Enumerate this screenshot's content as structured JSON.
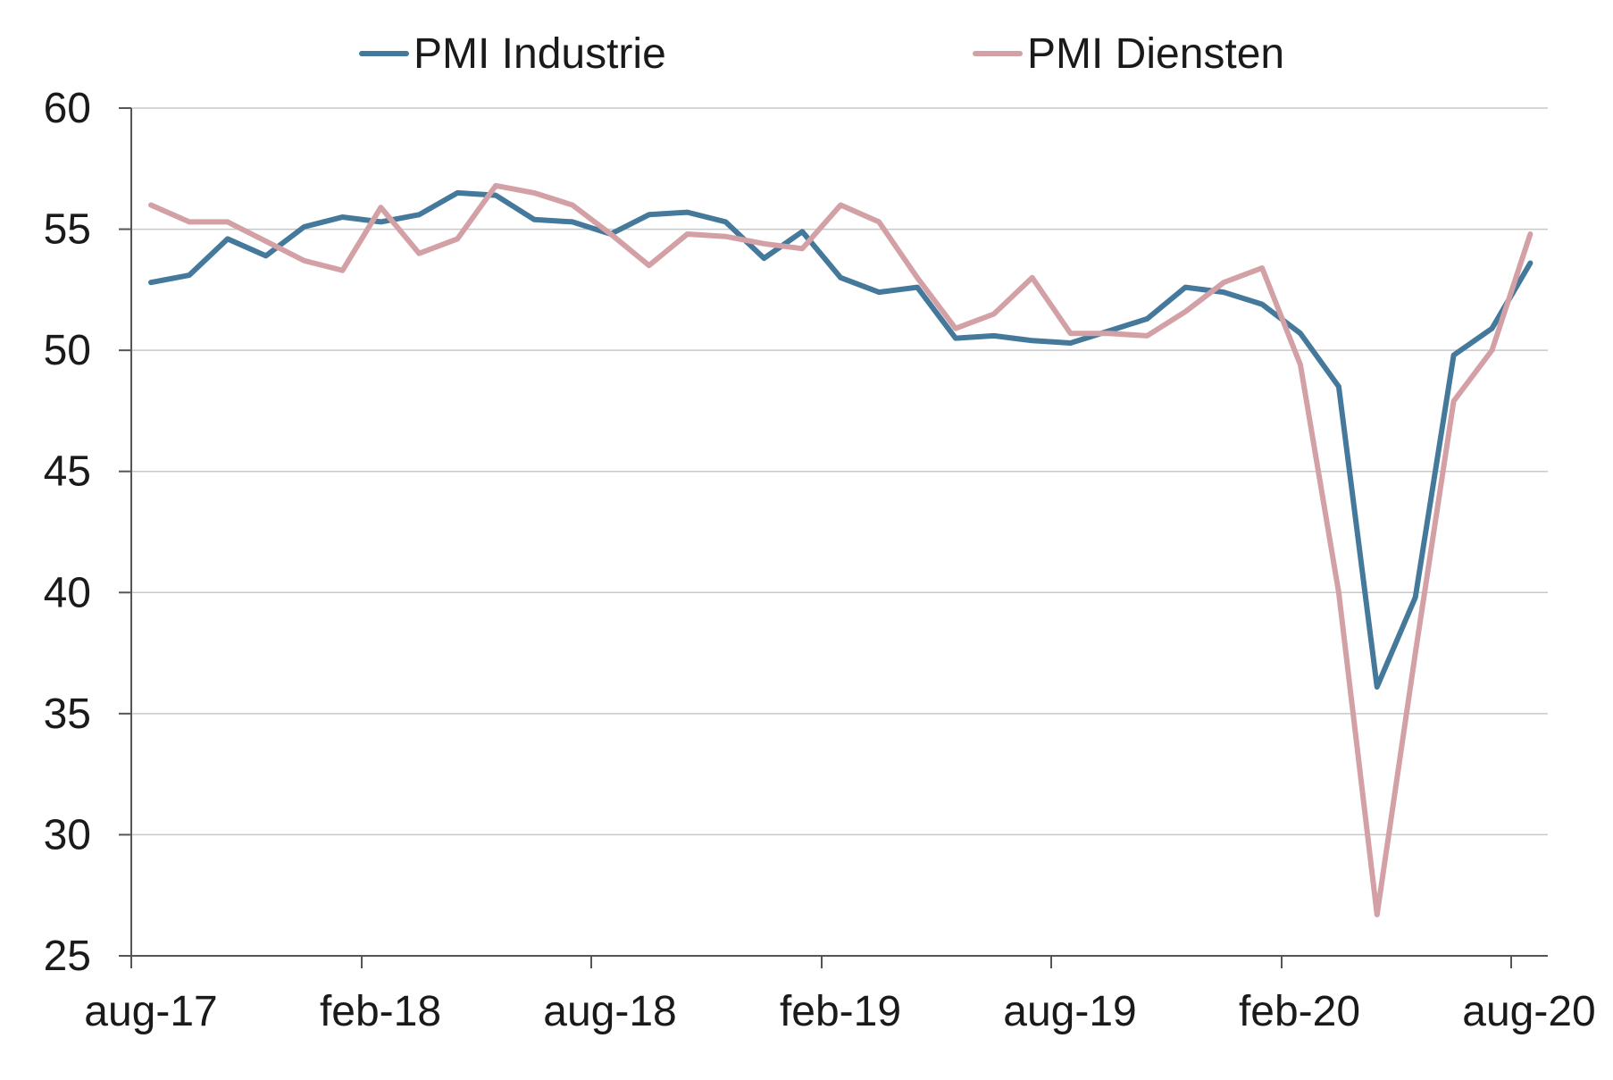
{
  "chart_data": {
    "type": "line",
    "title": "",
    "xlabel": "",
    "ylabel": "",
    "ylim": [
      25,
      60
    ],
    "y_ticks": [
      "25",
      "30",
      "35",
      "40",
      "45",
      "50",
      "55",
      "60"
    ],
    "x_tick_labels": [
      "aug-17",
      "feb-18",
      "aug-18",
      "feb-19",
      "aug-19",
      "feb-20",
      "aug-20"
    ],
    "grid": true,
    "legend_position": "top",
    "x": [
      "aug-17",
      "sep-17",
      "okt-17",
      "nov-17",
      "dec-17",
      "jan-18",
      "feb-18",
      "mrt-18",
      "apr-18",
      "mei-18",
      "jun-18",
      "jul-18",
      "aug-18",
      "sep-18",
      "okt-18",
      "nov-18",
      "dec-18",
      "jan-19",
      "feb-19",
      "mrt-19",
      "apr-19",
      "mei-19",
      "jun-19",
      "jul-19",
      "aug-19",
      "sep-19",
      "okt-19",
      "nov-19",
      "dec-19",
      "jan-20",
      "feb-20",
      "mrt-20",
      "apr-20",
      "mei-20",
      "jun-20",
      "jul-20",
      "aug-20"
    ],
    "series": [
      {
        "name": "PMI Industrie",
        "color": "#45799b",
        "values": [
          52.8,
          53.1,
          54.6,
          53.9,
          55.1,
          55.5,
          55.3,
          55.6,
          56.5,
          56.4,
          55.4,
          55.3,
          54.8,
          55.6,
          55.7,
          55.3,
          53.8,
          54.9,
          53.0,
          52.4,
          52.6,
          50.5,
          50.6,
          50.4,
          50.3,
          50.8,
          51.3,
          52.6,
          52.4,
          51.9,
          50.7,
          48.5,
          36.1,
          39.8,
          49.8,
          50.9,
          53.6
        ]
      },
      {
        "name": "PMI Diensten",
        "color": "#d3a0a6",
        "values": [
          56.0,
          55.3,
          55.3,
          54.5,
          53.7,
          53.3,
          55.9,
          54.0,
          54.6,
          56.8,
          56.5,
          56.0,
          54.8,
          53.5,
          54.8,
          54.7,
          54.4,
          54.2,
          56.0,
          55.3,
          53.0,
          50.9,
          51.5,
          53.0,
          50.7,
          50.7,
          50.6,
          51.6,
          52.8,
          53.4,
          49.4,
          40.0,
          26.7,
          37.5,
          47.9,
          50.0,
          54.8
        ]
      }
    ]
  }
}
